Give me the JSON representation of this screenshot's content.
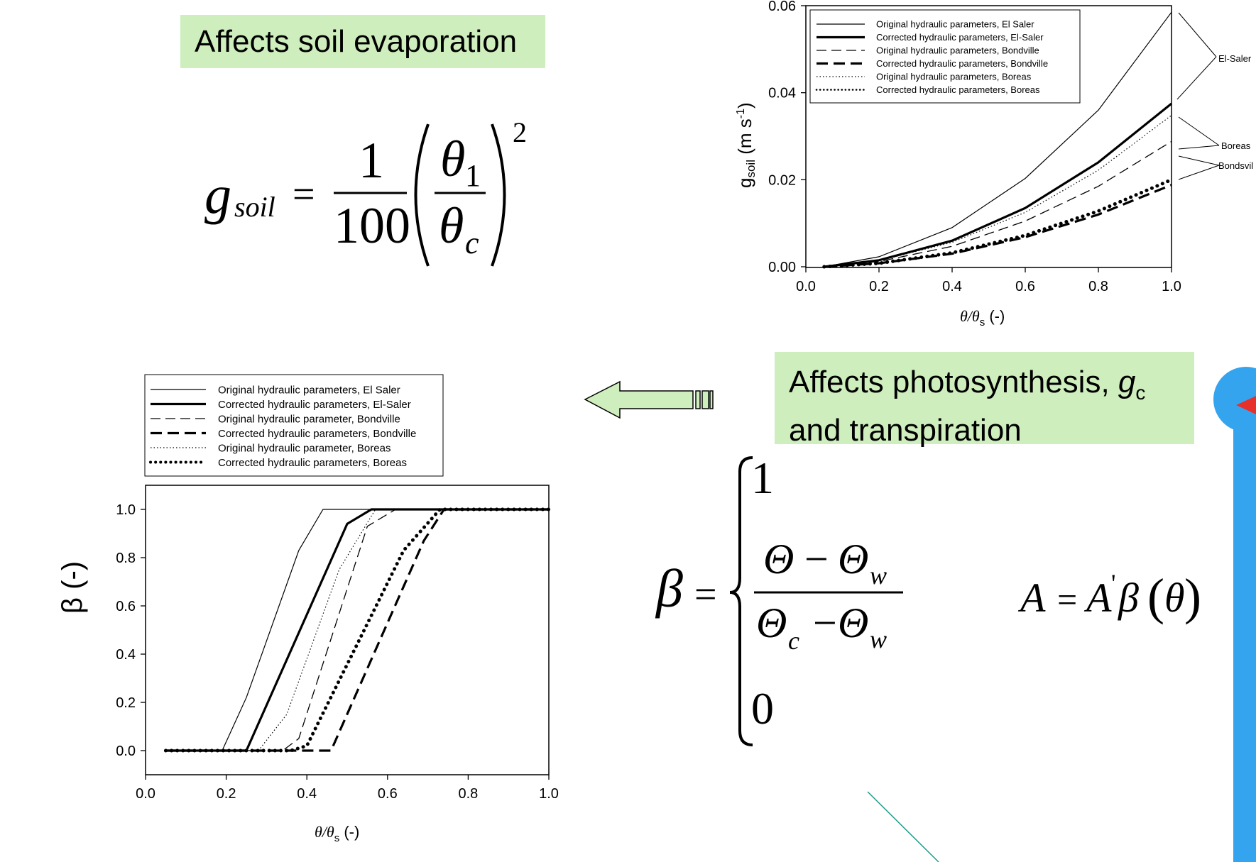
{
  "banners": {
    "soil": "Affects soil evaporation",
    "photo_line1": "Affects photosynthesis, ",
    "photo_gc_g": "g",
    "photo_gc_sub": "c",
    "photo_line2": "and transpiration"
  },
  "equation_gsoil": {
    "lhs_g": "g",
    "lhs_sub": "soil",
    "equals": "=",
    "numerator": "1",
    "denominator": "100",
    "theta1": "θ",
    "theta1_sub": "1",
    "thetac": "θ",
    "thetac_sub": "c",
    "exponent": "2"
  },
  "equation_beta": {
    "lhs": "β",
    "equals": "=",
    "case_top": "1",
    "num_a": "Θ",
    "minus": "−",
    "num_b": "Θ",
    "num_b_sub": "w",
    "den_a": "Θ",
    "den_a_sub": "c",
    "den_b": "Θ",
    "den_b_sub": "w",
    "case_bottom": "0"
  },
  "equation_A": {
    "lhs": "A",
    "equals": "=",
    "rhs_A": "A",
    "prime": "'",
    "beta": "β",
    "theta": "θ",
    "paren_open": "(",
    "paren_close": ")"
  },
  "colors": {
    "banner": "#cfeebd",
    "arrow_fill": "#cfeebd",
    "blue_bar": "#35a4ee",
    "red_marker": "#e8302a",
    "teal_line": "#1f9a8a"
  },
  "chart_data": [
    {
      "type": "line",
      "id": "gsoil",
      "ylabel_main": "g",
      "ylabel_sub": "soil",
      "ylabel_unit_open": " (m s",
      "ylabel_unit_exp": "-1",
      "ylabel_unit_close": ")",
      "xlabel_main": "θ/θ",
      "xlabel_sub": "s",
      "xlabel_unit": "  (-)",
      "xlim": [
        0,
        1
      ],
      "ylim": [
        0,
        0.06
      ],
      "xticks": [
        "0.0",
        "0.2",
        "0.4",
        "0.6",
        "0.8",
        "1.0"
      ],
      "yticks": [
        "0.00",
        "0.02",
        "0.04",
        "0.06"
      ],
      "legend_position": "top-left",
      "series": [
        {
          "name": "Original hydraulic parameters, El Saler",
          "style": "thin",
          "x": [
            0.05,
            0.2,
            0.4,
            0.6,
            0.8,
            1.0
          ],
          "y": [
            0.0,
            0.0023,
            0.009,
            0.0203,
            0.036,
            0.0585
          ]
        },
        {
          "name": "Corrected hydraulic parameters, El-Saler",
          "style": "thick",
          "x": [
            0.05,
            0.2,
            0.4,
            0.6,
            0.8,
            1.0
          ],
          "y": [
            0.0,
            0.0015,
            0.006,
            0.0135,
            0.024,
            0.0375
          ]
        },
        {
          "name": "Original hydraulic parameters, Bondville",
          "style": "dash",
          "x": [
            0.05,
            0.2,
            0.4,
            0.6,
            0.8,
            1.0
          ],
          "y": [
            0.0,
            0.0012,
            0.0047,
            0.0105,
            0.0185,
            0.0288
          ]
        },
        {
          "name": "Corrected hydraulic parameters, Bondville",
          "style": "thickdash",
          "x": [
            0.05,
            0.2,
            0.4,
            0.6,
            0.8,
            1.0
          ],
          "y": [
            0.0,
            0.0008,
            0.003,
            0.0068,
            0.012,
            0.0188
          ]
        },
        {
          "name": "Original hydraulic parameters, Boreas",
          "style": "dotted",
          "x": [
            0.05,
            0.2,
            0.4,
            0.6,
            0.8,
            1.0
          ],
          "y": [
            0.0,
            0.0014,
            0.0056,
            0.0125,
            0.0222,
            0.0348
          ]
        },
        {
          "name": "Corrected hydraulic parameters, Boreas",
          "style": "thickdot",
          "x": [
            0.05,
            0.2,
            0.4,
            0.6,
            0.8,
            1.0
          ],
          "y": [
            0.0,
            0.0008,
            0.0032,
            0.0072,
            0.0128,
            0.02
          ]
        }
      ],
      "annotations": [
        "El-Saler",
        "Boreas",
        "Bondsvil"
      ]
    },
    {
      "type": "line",
      "id": "beta",
      "ylabel": "β (-)",
      "xlabel_main": "θ/θ",
      "xlabel_sub": "s",
      "xlabel_unit": "  (-)",
      "xlim": [
        0,
        1
      ],
      "ylim": [
        -0.1,
        1.1
      ],
      "xticks": [
        "0.0",
        "0.2",
        "0.4",
        "0.6",
        "0.8",
        "1.0"
      ],
      "yticks": [
        "0.0",
        "0.2",
        "0.4",
        "0.6",
        "0.8",
        "1.0"
      ],
      "legend_position": "top (outside)",
      "series": [
        {
          "name": "Original hydraulic parameters, El Saler",
          "style": "thin",
          "x": [
            0.05,
            0.19,
            0.25,
            0.38,
            0.44,
            1.0
          ],
          "y": [
            0,
            0,
            0.22,
            0.83,
            1,
            1
          ]
        },
        {
          "name": "Corrected hydraulic parameters, El-Saler",
          "style": "thick",
          "x": [
            0.05,
            0.25,
            0.5,
            0.56,
            1.0
          ],
          "y": [
            0,
            0,
            0.94,
            1,
            1
          ]
        },
        {
          "name": "Original hydraulic parameter, Bondville",
          "style": "dash",
          "x": [
            0.05,
            0.34,
            0.38,
            0.55,
            0.62,
            1.0
          ],
          "y": [
            0,
            0,
            0.05,
            0.93,
            1,
            1
          ]
        },
        {
          "name": "Corrected hydraulic parameters, Bondville",
          "style": "thickdash",
          "x": [
            0.05,
            0.39,
            0.46,
            0.69,
            0.74,
            1.0
          ],
          "y": [
            0,
            0,
            0,
            0.87,
            1,
            1
          ]
        },
        {
          "name": "Original hydraulic parameter, Boreas",
          "style": "dotted",
          "x": [
            0.05,
            0.28,
            0.35,
            0.48,
            0.57,
            1.0
          ],
          "y": [
            0,
            0,
            0.15,
            0.75,
            1,
            1
          ]
        },
        {
          "name": "Corrected hydraulic parameters, Boreas",
          "style": "thickdot",
          "x": [
            0.05,
            0.36,
            0.4,
            0.64,
            0.73,
            1.0
          ],
          "y": [
            0,
            0,
            0.02,
            0.83,
            1,
            1
          ]
        }
      ]
    }
  ]
}
